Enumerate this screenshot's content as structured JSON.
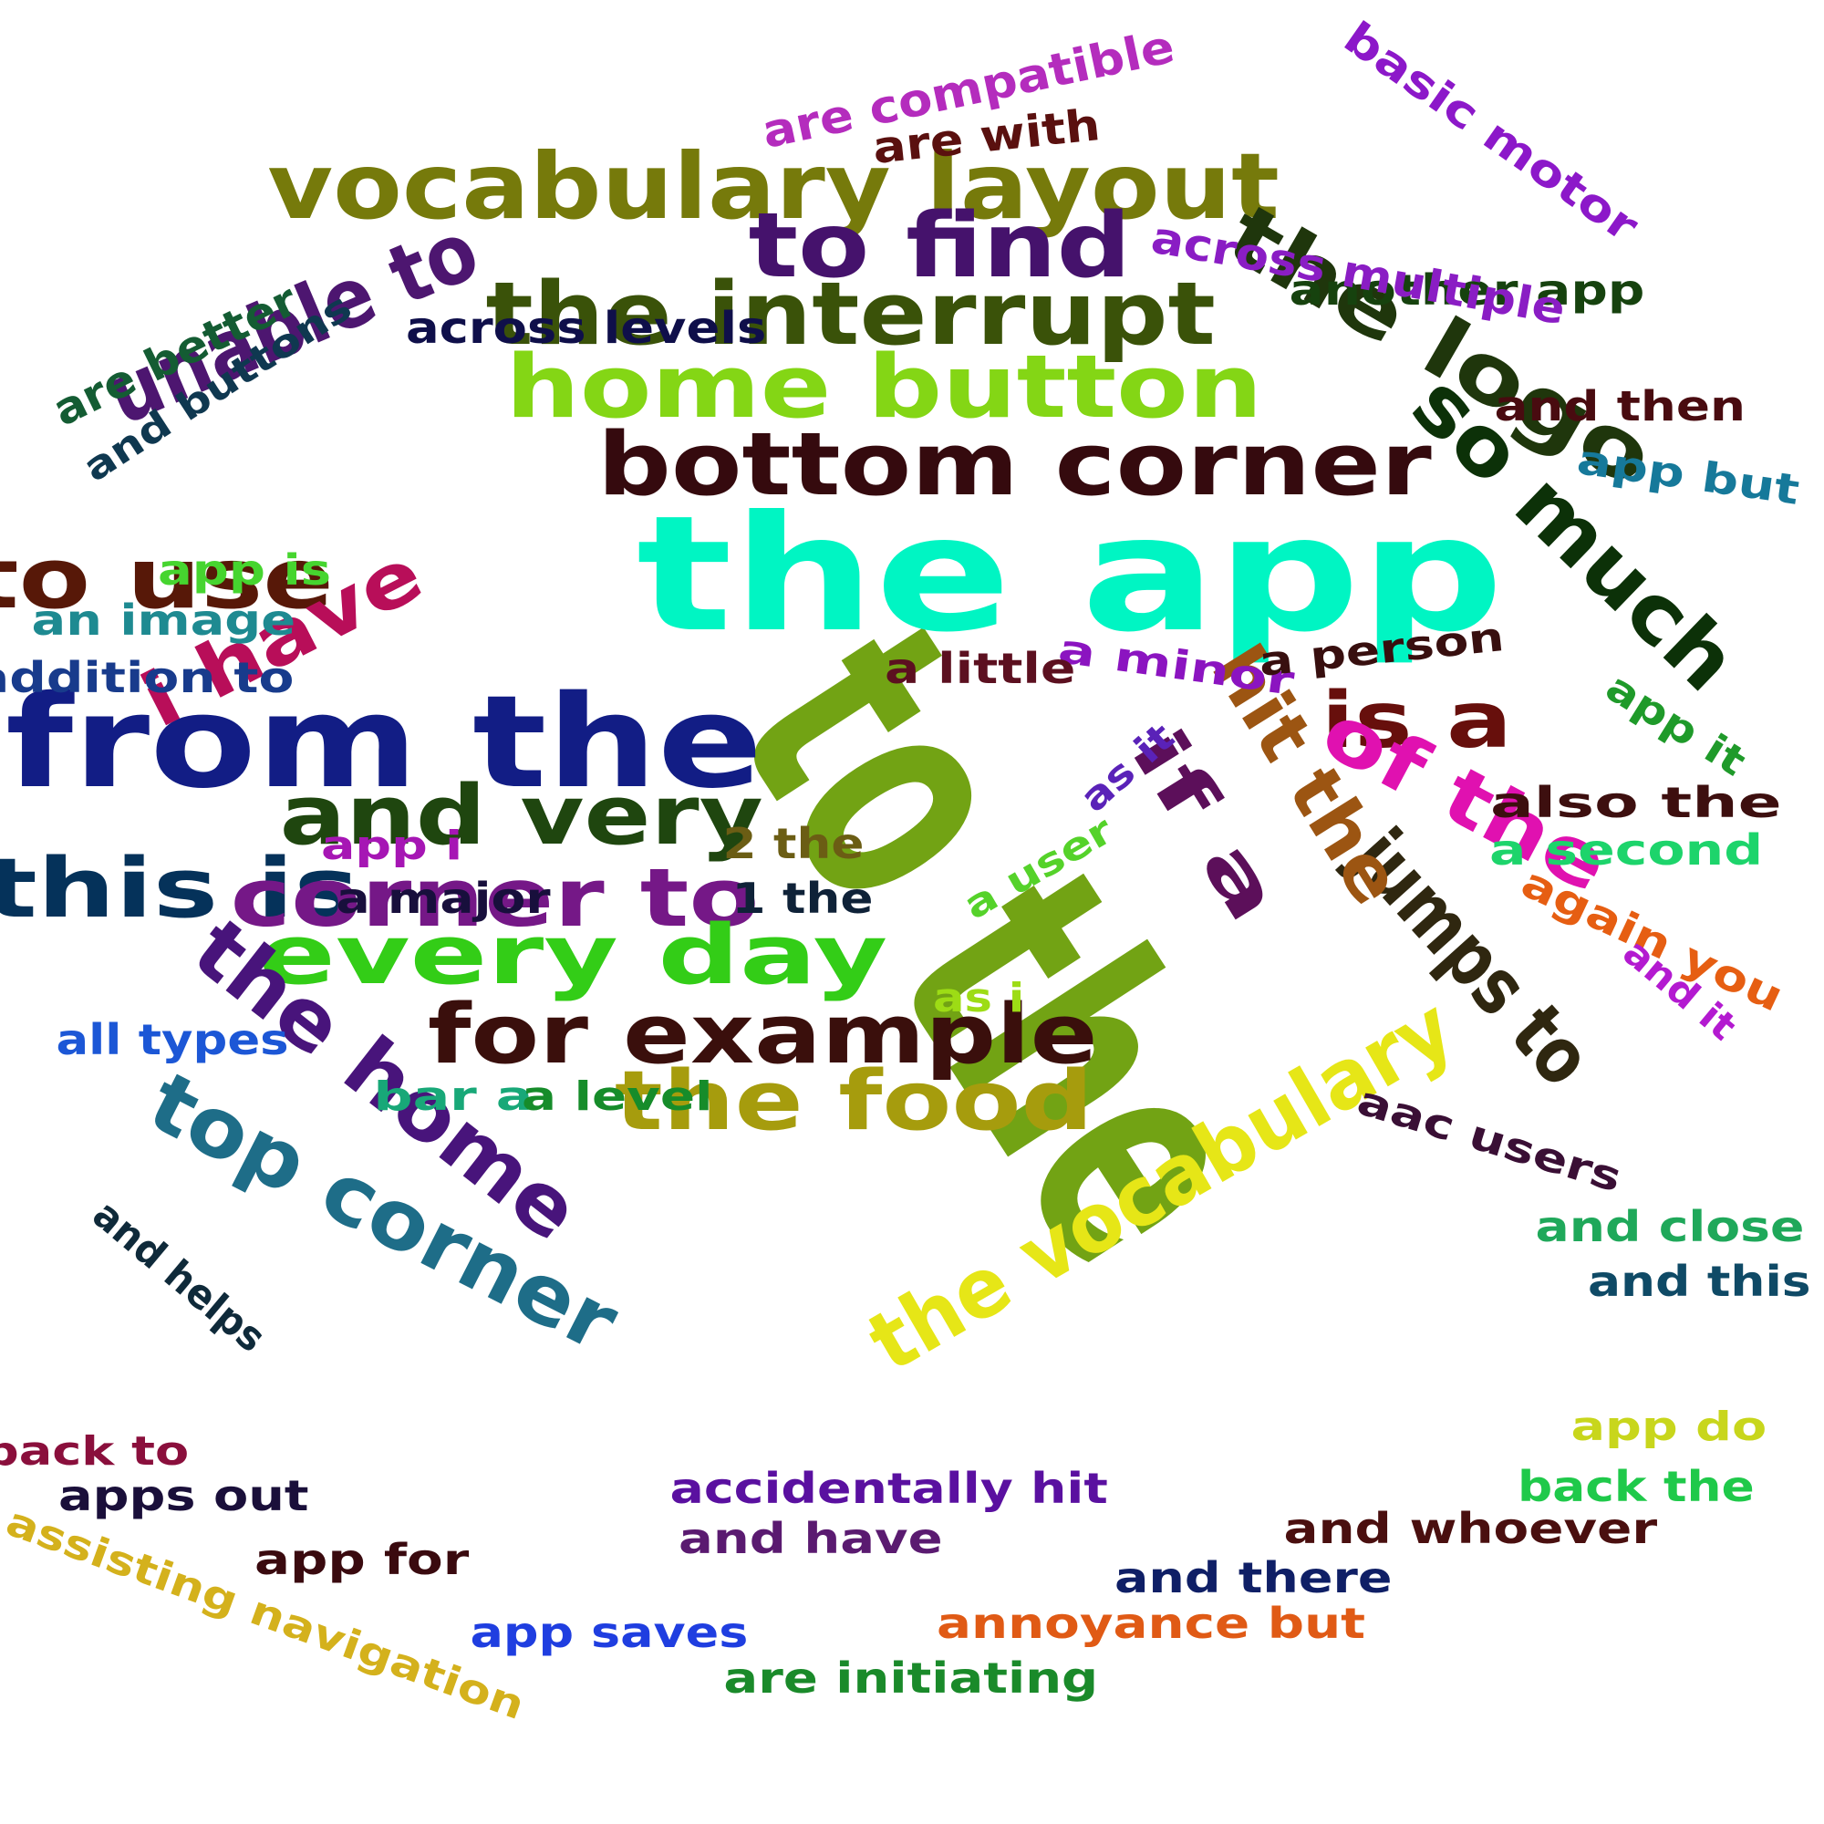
{
  "words": [
    {
      "text": "to the",
      "color": "#72a314"
    },
    {
      "text": "the app",
      "color": "#00f5c3"
    },
    {
      "text": "from the",
      "color": "#121d85"
    },
    {
      "text": "vocabulary layout",
      "color": "#767a0b"
    },
    {
      "text": "the interrupt",
      "color": "#3a5209"
    },
    {
      "text": "home button",
      "color": "#84d615"
    },
    {
      "text": "bottom corner",
      "color": "#350a0e"
    },
    {
      "text": "to find",
      "color": "#45126c"
    },
    {
      "text": "the logo",
      "color": "#1f360c"
    },
    {
      "text": "so much",
      "color": "#0c3108"
    },
    {
      "text": "unable to",
      "color": "#4d1670"
    },
    {
      "text": "to use",
      "color": "#571808"
    },
    {
      "text": "i have",
      "color": "#b80e59"
    },
    {
      "text": "and very",
      "color": "#1f460f"
    },
    {
      "text": "this is",
      "color": "#05325a"
    },
    {
      "text": "corner to",
      "color": "#751887"
    },
    {
      "text": "every day",
      "color": "#33cd17"
    },
    {
      "text": "for example",
      "color": "#3a0f0c"
    },
    {
      "text": "the food",
      "color": "#a69c0d"
    },
    {
      "text": "the home",
      "color": "#48147b"
    },
    {
      "text": "top corner",
      "color": "#1e6d88"
    },
    {
      "text": "the vocabulary",
      "color": "#e6e617"
    },
    {
      "text": "jumps to",
      "color": "#2f2710"
    },
    {
      "text": "is a",
      "color": "#670f0c"
    },
    {
      "text": "hit the",
      "color": "#9c5512"
    },
    {
      "text": "of the",
      "color": "#e011b0"
    },
    {
      "text": "if a",
      "color": "#5c0f5a"
    },
    {
      "text": "are compatible",
      "color": "#b42cbd"
    },
    {
      "text": "are with",
      "color": "#5a100f"
    },
    {
      "text": "basic motor",
      "color": "#8c18c9"
    },
    {
      "text": "another app",
      "color": "#16420e"
    },
    {
      "text": "across multiple",
      "color": "#8a1dc4"
    },
    {
      "text": "across levels",
      "color": "#0f0f4a"
    },
    {
      "text": "are better",
      "color": "#145c33"
    },
    {
      "text": "and buttons",
      "color": "#0f3850"
    },
    {
      "text": "and then",
      "color": "#490b10"
    },
    {
      "text": "app but",
      "color": "#16799a"
    },
    {
      "text": "app is",
      "color": "#46d52f"
    },
    {
      "text": "an image",
      "color": "#1e8a91"
    },
    {
      "text": "addition to",
      "color": "#183b8c"
    },
    {
      "text": "a minor",
      "color": "#8b14c0"
    },
    {
      "text": "a little",
      "color": "#5c1020"
    },
    {
      "text": "a person",
      "color": "#380f0f"
    },
    {
      "text": "app it",
      "color": "#1f9a2a"
    },
    {
      "text": "as it",
      "color": "#5a22b8"
    },
    {
      "text": "also the",
      "color": "#3d0f0f"
    },
    {
      "text": "a second",
      "color": "#1dd46b"
    },
    {
      "text": "app i",
      "color": "#a616b4"
    },
    {
      "text": "2 the",
      "color": "#6b5d14"
    },
    {
      "text": "a user",
      "color": "#55d22a"
    },
    {
      "text": "a major",
      "color": "#180f3c"
    },
    {
      "text": "1 the",
      "color": "#0f2238"
    },
    {
      "text": "again you",
      "color": "#e65e12"
    },
    {
      "text": "and it",
      "color": "#b31ad0"
    },
    {
      "text": "as i",
      "color": "#9ddc15"
    },
    {
      "text": "all types",
      "color": "#1c57d6"
    },
    {
      "text": "bar a",
      "color": "#18a878"
    },
    {
      "text": "a level",
      "color": "#168c2a"
    },
    {
      "text": "aac users",
      "color": "#3a0f35"
    },
    {
      "text": "and close",
      "color": "#1fa85a"
    },
    {
      "text": "and this",
      "color": "#0f4a66"
    },
    {
      "text": "and helps",
      "color": "#0f2a3a"
    },
    {
      "text": "app do",
      "color": "#c8d61c"
    },
    {
      "text": "back the",
      "color": "#1fc94a"
    },
    {
      "text": "back to",
      "color": "#8a0f3c"
    },
    {
      "text": "apps out",
      "color": "#1a0f3a"
    },
    {
      "text": "accidentally hit",
      "color": "#5a10a0"
    },
    {
      "text": "and have",
      "color": "#5a1a70"
    },
    {
      "text": "and whoever",
      "color": "#4a0f0f"
    },
    {
      "text": "assisting navigation",
      "color": "#d4b11c"
    },
    {
      "text": "app for",
      "color": "#3a0a0f"
    },
    {
      "text": "and there",
      "color": "#0f1f66"
    },
    {
      "text": "app saves",
      "color": "#1f3ee0"
    },
    {
      "text": "annoyance but",
      "color": "#e05a15"
    },
    {
      "text": "are initiating",
      "color": "#1a8a2a"
    }
  ]
}
